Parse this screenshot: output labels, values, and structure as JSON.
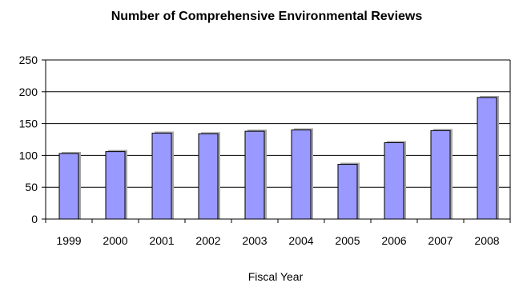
{
  "chart_data": {
    "type": "bar",
    "title": "Number of Comprehensive Environmental Reviews",
    "xlabel": "Fiscal Year",
    "ylabel": "",
    "categories": [
      "1999",
      "2000",
      "2001",
      "2002",
      "2003",
      "2004",
      "2005",
      "2006",
      "2007",
      "2008"
    ],
    "values": [
      103,
      106,
      135,
      134,
      138,
      140,
      86,
      120,
      139,
      191
    ],
    "ylim": [
      0,
      250
    ],
    "yticks": [
      0,
      50,
      100,
      150,
      200,
      250
    ],
    "grid": true,
    "legend": "none",
    "colors": {
      "bar_fill": "#9999FF",
      "bar_stroke": "#000000",
      "bar_shadow": "#A6A6A6",
      "grid": "#000000",
      "axis": "#000000"
    }
  }
}
